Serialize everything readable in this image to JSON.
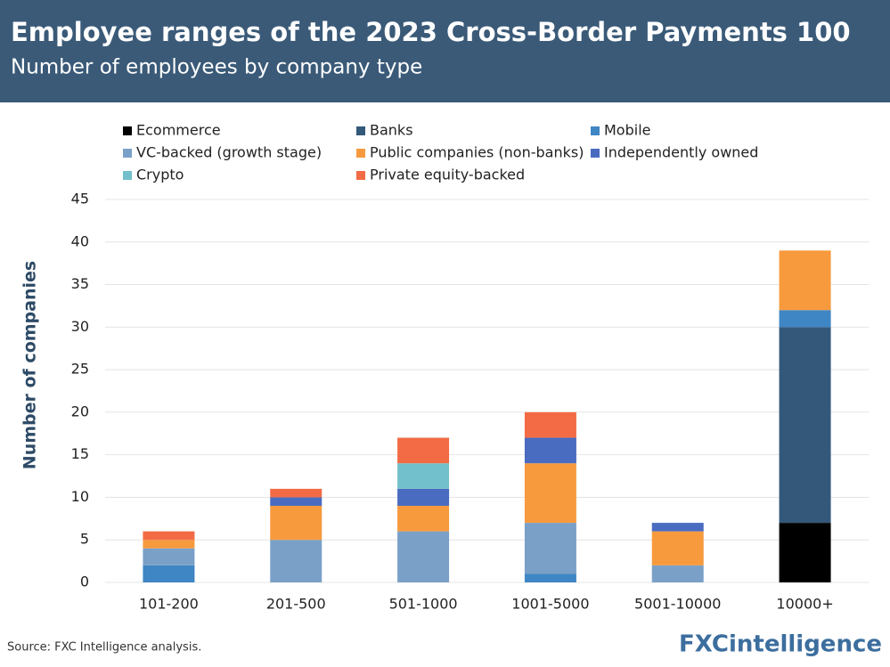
{
  "chart_data": {
    "type": "stacked_bar",
    "title": "Employee ranges of the 2023 Cross-Border Payments 100",
    "subtitle": "Number of employees by company type",
    "y_label": "Number of companies",
    "source": "Source: FXC Intelligence analysis.",
    "logo": "FXCintelligence",
    "categories": [
      "101-200",
      "201-500",
      "501-1000",
      "1001-5000",
      "5001-10000",
      "10000+"
    ],
    "series": [
      {
        "name": "Ecommerce",
        "color": "#000000",
        "values": [
          0,
          0,
          0,
          0,
          0,
          7
        ]
      },
      {
        "name": "Banks",
        "color": "#34587a",
        "values": [
          0,
          0,
          0,
          0,
          0,
          23
        ]
      },
      {
        "name": "Mobile",
        "color": "#3f86c4",
        "values": [
          2,
          0,
          0,
          1,
          0,
          2
        ]
      },
      {
        "name": "VC-backed (growth stage)",
        "color": "#7aa0c8",
        "values": [
          2,
          5,
          6,
          6,
          2,
          0
        ]
      },
      {
        "name": "Public companies (non-banks)",
        "color": "#f79a3e",
        "values": [
          1,
          4,
          3,
          7,
          4,
          7
        ]
      },
      {
        "name": "Independently owned",
        "color": "#4a6cc0",
        "values": [
          0,
          1,
          2,
          3,
          1,
          0
        ]
      },
      {
        "name": "Crypto",
        "color": "#72c0cb",
        "values": [
          0,
          0,
          3,
          0,
          0,
          0
        ]
      },
      {
        "name": "Private equity-backed",
        "color": "#f26b45",
        "values": [
          1,
          1,
          3,
          3,
          0,
          0
        ]
      }
    ],
    "ylim": [
      0,
      45
    ],
    "yticks": [
      0,
      5,
      10,
      15,
      20,
      25,
      30,
      35,
      40,
      45
    ],
    "grid": true
  }
}
